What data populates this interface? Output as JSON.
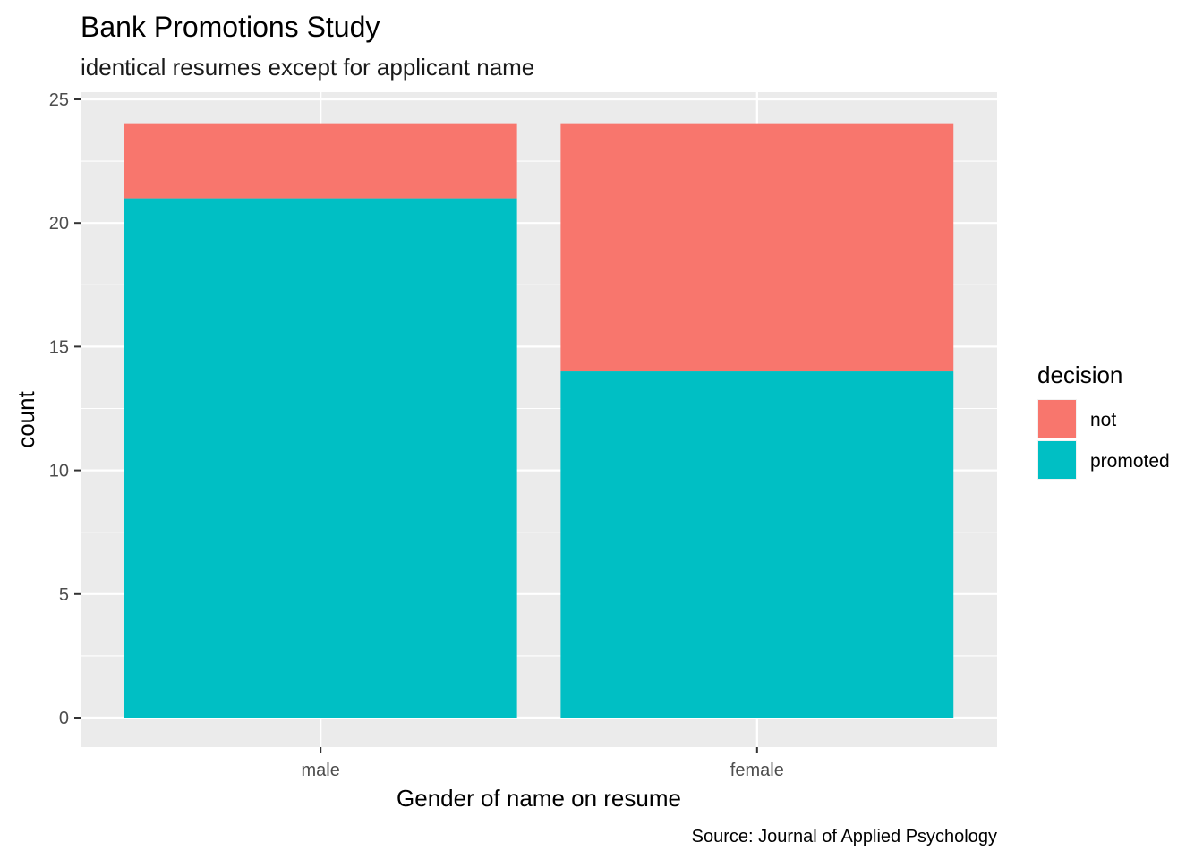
{
  "chart_data": {
    "type": "bar",
    "stacked": true,
    "title": "Bank Promotions Study",
    "subtitle": "identical resumes except for applicant name",
    "xlabel": "Gender of name on resume",
    "ylabel": "count",
    "caption": "Source: Journal of Applied Psychology",
    "categories": [
      "male",
      "female"
    ],
    "series": [
      {
        "name": "promoted",
        "values": [
          21,
          14
        ],
        "color": "#00BFC4"
      },
      {
        "name": "not",
        "values": [
          3,
          10
        ],
        "color": "#F8766D"
      }
    ],
    "ylim": [
      0,
      25
    ],
    "yticks": [
      "0",
      "5",
      "10",
      "15",
      "20",
      "25"
    ],
    "grid": true,
    "legend": {
      "title": "decision",
      "placement": "right",
      "items": [
        {
          "label": "not",
          "color": "#F8766D"
        },
        {
          "label": "promoted",
          "color": "#00BFC4"
        }
      ]
    },
    "panel_background": "#EBEBEB",
    "grid_color": "#FFFFFF"
  }
}
